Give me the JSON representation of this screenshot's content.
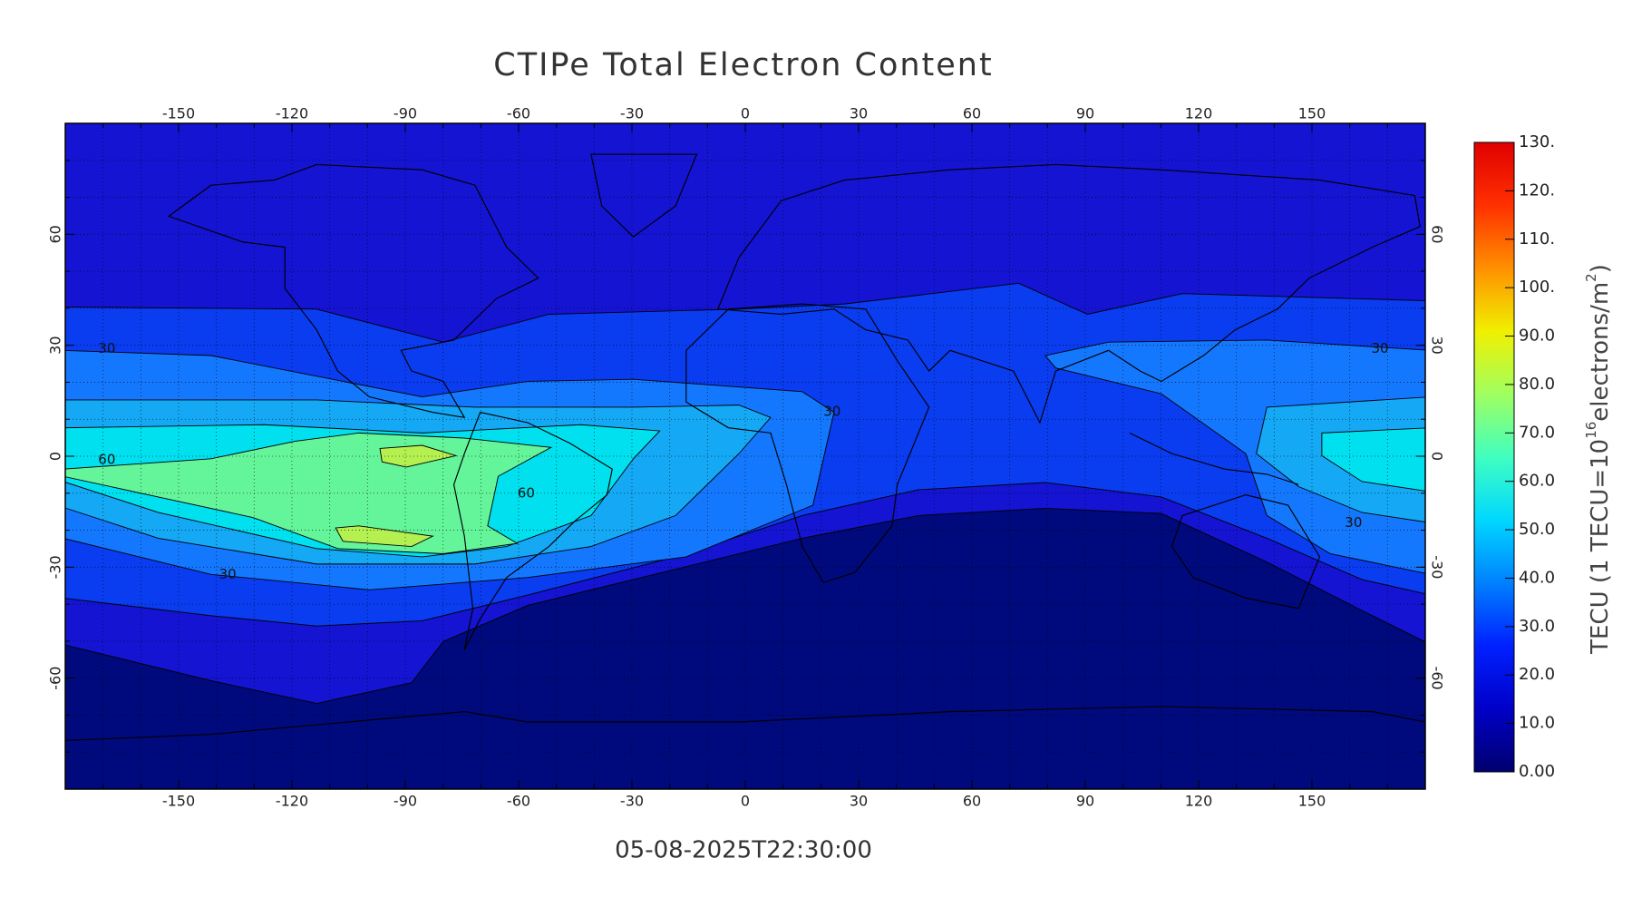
{
  "chart_data": {
    "type": "map",
    "title": "CTIPe Total Electron Content",
    "timestamp": "05-08-2025T22:30:00",
    "xlim": [
      -180,
      180
    ],
    "ylim": [
      -90,
      90
    ],
    "xticks": [
      -150,
      -120,
      -90,
      -60,
      -30,
      0,
      30,
      60,
      90,
      120,
      150
    ],
    "yticks": [
      -60,
      -30,
      0,
      30,
      60
    ],
    "xgrid": [
      -170,
      -160,
      -150,
      -140,
      -130,
      -120,
      -110,
      -100,
      -90,
      -80,
      -70,
      -60,
      -50,
      -40,
      -30,
      -20,
      -10,
      0,
      10,
      20,
      30,
      40,
      50,
      60,
      70,
      80,
      90,
      100,
      110,
      120,
      130,
      140,
      150,
      160,
      170
    ],
    "ygrid": [
      -80,
      -70,
      -60,
      -50,
      -40,
      -30,
      -20,
      -10,
      0,
      10,
      20,
      30,
      40,
      50,
      60,
      70,
      80
    ],
    "grid": true,
    "contour_labels": [
      {
        "value": 30,
        "lon": -169,
        "lat": 29
      },
      {
        "value": 60,
        "lon": -169,
        "lat": -1
      },
      {
        "value": 30,
        "lon": -137,
        "lat": -32
      },
      {
        "value": 60,
        "lon": -58,
        "lat": -10
      },
      {
        "value": 30,
        "lon": 23,
        "lat": 12
      },
      {
        "value": 30,
        "lon": 168,
        "lat": 29
      },
      {
        "value": 30,
        "lon": 161,
        "lat": -18
      }
    ],
    "colorbar": {
      "label": {
        "base": "TECU (1 TECU=10",
        "exp": "16",
        "unit": "electrons/m",
        "unit_exp": "2",
        "close": ")"
      },
      "lim": [
        0,
        130
      ],
      "ticks": [
        {
          "value": 0,
          "label": "0.00"
        },
        {
          "value": 10,
          "label": "10.0"
        },
        {
          "value": 20,
          "label": "20.0"
        },
        {
          "value": 30,
          "label": "30.0"
        },
        {
          "value": 40,
          "label": "40.0"
        },
        {
          "value": 50,
          "label": "50.0"
        },
        {
          "value": 60,
          "label": "60.0"
        },
        {
          "value": 70,
          "label": "70.0"
        },
        {
          "value": 80,
          "label": "80.0"
        },
        {
          "value": 90,
          "label": "90.0"
        },
        {
          "value": 100,
          "label": "100."
        },
        {
          "value": 110,
          "label": "110."
        },
        {
          "value": 120,
          "label": "120."
        },
        {
          "value": 130,
          "label": "130."
        }
      ],
      "colors": [
        "#00006e",
        "#0000c8",
        "#0020ff",
        "#0080ff",
        "#00d8ff",
        "#40ffc0",
        "#a0ff60",
        "#f0f000",
        "#ff9000",
        "#ff3000",
        "#e00000"
      ]
    }
  }
}
